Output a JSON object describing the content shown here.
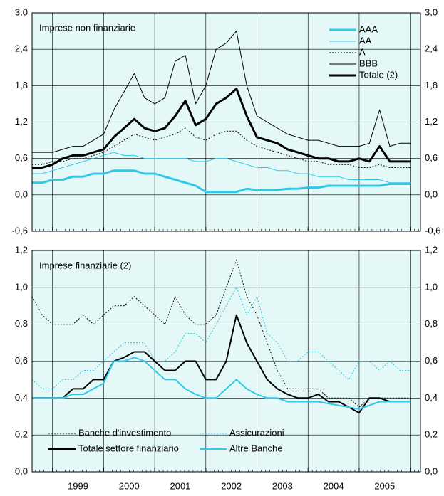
{
  "chart_data": [
    {
      "type": "line",
      "label": "Imprese non finanziarie",
      "background": "#e4f8f8",
      "grid": true,
      "legend": "top-right",
      "x": [
        1998.6,
        1998.8,
        1999.0,
        1999.2,
        1999.4,
        1999.6,
        1999.8,
        2000.0,
        2000.2,
        2000.4,
        2000.6,
        2000.8,
        2001.0,
        2001.2,
        2001.4,
        2001.6,
        2001.8,
        2002.0,
        2002.2,
        2002.4,
        2002.6,
        2002.8,
        2003.0,
        2003.2,
        2003.4,
        2003.6,
        2003.8,
        2004.0,
        2004.2,
        2004.4,
        2004.6,
        2004.8,
        2005.0,
        2005.2,
        2005.4,
        2005.6,
        2005.8,
        2006.0
      ],
      "xlim": [
        1998.6,
        2006.2
      ],
      "ylim": [
        -0.6,
        3.0
      ],
      "yticks": [
        {
          "value": 3.0,
          "label": "3,0"
        },
        {
          "value": 2.4,
          "label": "2,4"
        },
        {
          "value": 1.8,
          "label": "1,8"
        },
        {
          "value": 1.2,
          "label": "1,2"
        },
        {
          "value": 0.6,
          "label": "0,6"
        },
        {
          "value": 0.0,
          "label": "0,0"
        },
        {
          "value": -0.6,
          "label": "-0,6"
        }
      ],
      "series": [
        {
          "name": "AAA",
          "color": "#33c8e8",
          "style": "solid",
          "weight": "thick",
          "values": [
            0.2,
            0.2,
            0.25,
            0.25,
            0.3,
            0.3,
            0.35,
            0.35,
            0.4,
            0.4,
            0.4,
            0.35,
            0.35,
            0.3,
            0.25,
            0.2,
            0.15,
            0.05,
            0.05,
            0.05,
            0.05,
            0.1,
            0.08,
            0.08,
            0.08,
            0.1,
            0.1,
            0.12,
            0.12,
            0.15,
            0.15,
            0.15,
            0.15,
            0.15,
            0.15,
            0.18,
            0.18,
            0.18
          ]
        },
        {
          "name": "AA",
          "color": "#33c8e8",
          "style": "solid",
          "weight": "thin",
          "values": [
            0.35,
            0.35,
            0.4,
            0.45,
            0.5,
            0.55,
            0.6,
            0.65,
            0.7,
            0.65,
            0.65,
            0.6,
            0.6,
            0.6,
            0.6,
            0.6,
            0.55,
            0.55,
            0.6,
            0.6,
            0.55,
            0.5,
            0.45,
            0.45,
            0.4,
            0.4,
            0.35,
            0.35,
            0.3,
            0.3,
            0.3,
            0.25,
            0.25,
            0.25,
            0.25,
            0.2,
            0.2,
            0.2
          ]
        },
        {
          "name": "A",
          "color": "#000000",
          "style": "dotted",
          "weight": "thin",
          "values": [
            0.5,
            0.5,
            0.55,
            0.55,
            0.6,
            0.6,
            0.65,
            0.7,
            0.8,
            0.9,
            1.0,
            0.95,
            0.9,
            0.95,
            1.0,
            1.1,
            0.95,
            0.9,
            1.0,
            1.05,
            1.05,
            0.9,
            0.8,
            0.75,
            0.7,
            0.65,
            0.6,
            0.55,
            0.55,
            0.5,
            0.5,
            0.5,
            0.45,
            0.45,
            0.5,
            0.45,
            0.45,
            0.45
          ]
        },
        {
          "name": "BBB",
          "color": "#000000",
          "style": "solid",
          "weight": "thin",
          "values": [
            0.7,
            0.7,
            0.7,
            0.75,
            0.8,
            0.8,
            0.9,
            1.0,
            1.4,
            1.7,
            2.0,
            1.6,
            1.5,
            1.6,
            2.2,
            2.3,
            1.5,
            1.8,
            2.4,
            2.5,
            2.7,
            1.8,
            1.3,
            1.2,
            1.1,
            1.0,
            0.95,
            0.9,
            0.9,
            0.85,
            0.8,
            0.8,
            0.8,
            0.85,
            1.4,
            0.8,
            0.85,
            0.85
          ]
        },
        {
          "name": "Totale (2)",
          "color": "#000000",
          "style": "solid",
          "weight": "thick",
          "values": [
            0.45,
            0.45,
            0.5,
            0.6,
            0.65,
            0.65,
            0.7,
            0.75,
            0.95,
            1.1,
            1.25,
            1.1,
            1.05,
            1.1,
            1.3,
            1.55,
            1.15,
            1.25,
            1.5,
            1.6,
            1.75,
            1.3,
            0.95,
            0.9,
            0.85,
            0.75,
            0.7,
            0.65,
            0.6,
            0.6,
            0.55,
            0.55,
            0.6,
            0.55,
            0.8,
            0.55,
            0.55,
            0.55
          ]
        }
      ]
    },
    {
      "type": "line",
      "label": "Imprese finanziarie (2)",
      "background": "#e4f8f8",
      "grid": true,
      "legend": "bottom-left",
      "x": [
        1998.6,
        1998.8,
        1999.0,
        1999.2,
        1999.4,
        1999.6,
        1999.8,
        2000.0,
        2000.2,
        2000.4,
        2000.6,
        2000.8,
        2001.0,
        2001.2,
        2001.4,
        2001.6,
        2001.8,
        2002.0,
        2002.2,
        2002.4,
        2002.6,
        2002.8,
        2003.0,
        2003.2,
        2003.4,
        2003.6,
        2003.8,
        2004.0,
        2004.2,
        2004.4,
        2004.6,
        2004.8,
        2005.0,
        2005.2,
        2005.4,
        2005.6,
        2005.8,
        2006.0
      ],
      "xlim": [
        1998.6,
        2006.2
      ],
      "xticks": [
        {
          "value": 1999.5,
          "label": "1999"
        },
        {
          "value": 2000.5,
          "label": "2000"
        },
        {
          "value": 2001.5,
          "label": "2001"
        },
        {
          "value": 2002.5,
          "label": "2002"
        },
        {
          "value": 2003.5,
          "label": "2003"
        },
        {
          "value": 2004.5,
          "label": "2004"
        },
        {
          "value": 2005.5,
          "label": "2005"
        }
      ],
      "ylim": [
        0.0,
        1.2
      ],
      "yticks": [
        {
          "value": 1.2,
          "label": "1,2"
        },
        {
          "value": 1.0,
          "label": "1,0"
        },
        {
          "value": 0.8,
          "label": "0,8"
        },
        {
          "value": 0.6,
          "label": "0,6"
        },
        {
          "value": 0.4,
          "label": "0,4"
        },
        {
          "value": 0.2,
          "label": "0,2"
        },
        {
          "value": 0.0,
          "label": "0,0"
        }
      ],
      "series": [
        {
          "name": "Banche d'investimento",
          "color": "#000000",
          "style": "dotted",
          "weight": "thin",
          "values": [
            0.95,
            0.85,
            0.8,
            0.8,
            0.8,
            0.85,
            0.8,
            0.85,
            0.9,
            0.9,
            0.95,
            0.9,
            0.85,
            0.8,
            0.95,
            0.85,
            0.8,
            0.8,
            0.85,
            1.0,
            1.15,
            0.95,
            0.85,
            0.7,
            0.55,
            0.45,
            0.45,
            0.45,
            0.45,
            0.4,
            0.4,
            0.4,
            0.35,
            0.4,
            0.4,
            0.4,
            0.4,
            0.4
          ]
        },
        {
          "name": "Assicurazioni",
          "color": "#33c8e8",
          "style": "dotted",
          "weight": "thin",
          "values": [
            0.5,
            0.45,
            0.45,
            0.5,
            0.5,
            0.55,
            0.55,
            0.6,
            0.65,
            0.7,
            0.7,
            0.7,
            0.6,
            0.6,
            0.65,
            0.75,
            0.75,
            0.7,
            0.8,
            0.9,
            1.0,
            0.85,
            0.95,
            0.75,
            0.7,
            0.6,
            0.6,
            0.65,
            0.65,
            0.6,
            0.55,
            0.5,
            0.6,
            0.6,
            0.55,
            0.6,
            0.55,
            0.55
          ]
        },
        {
          "name": "Totale settore finanziario",
          "color": "#000000",
          "style": "solid",
          "weight": "medium",
          "values": [
            0.4,
            0.4,
            0.4,
            0.4,
            0.45,
            0.45,
            0.5,
            0.5,
            0.6,
            0.62,
            0.65,
            0.65,
            0.6,
            0.55,
            0.55,
            0.6,
            0.6,
            0.5,
            0.5,
            0.6,
            0.85,
            0.7,
            0.6,
            0.5,
            0.45,
            0.42,
            0.4,
            0.4,
            0.42,
            0.38,
            0.38,
            0.35,
            0.32,
            0.4,
            0.4,
            0.38,
            0.38,
            0.38
          ]
        },
        {
          "name": "Altre Banche",
          "color": "#33c8e8",
          "style": "solid",
          "weight": "medium",
          "values": [
            0.4,
            0.4,
            0.4,
            0.4,
            0.42,
            0.42,
            0.45,
            0.48,
            0.6,
            0.6,
            0.62,
            0.6,
            0.55,
            0.5,
            0.5,
            0.45,
            0.42,
            0.4,
            0.4,
            0.45,
            0.5,
            0.45,
            0.42,
            0.4,
            0.4,
            0.38,
            0.38,
            0.38,
            0.38,
            0.37,
            0.36,
            0.35,
            0.34,
            0.36,
            0.38,
            0.38,
            0.38,
            0.38
          ]
        }
      ]
    }
  ]
}
